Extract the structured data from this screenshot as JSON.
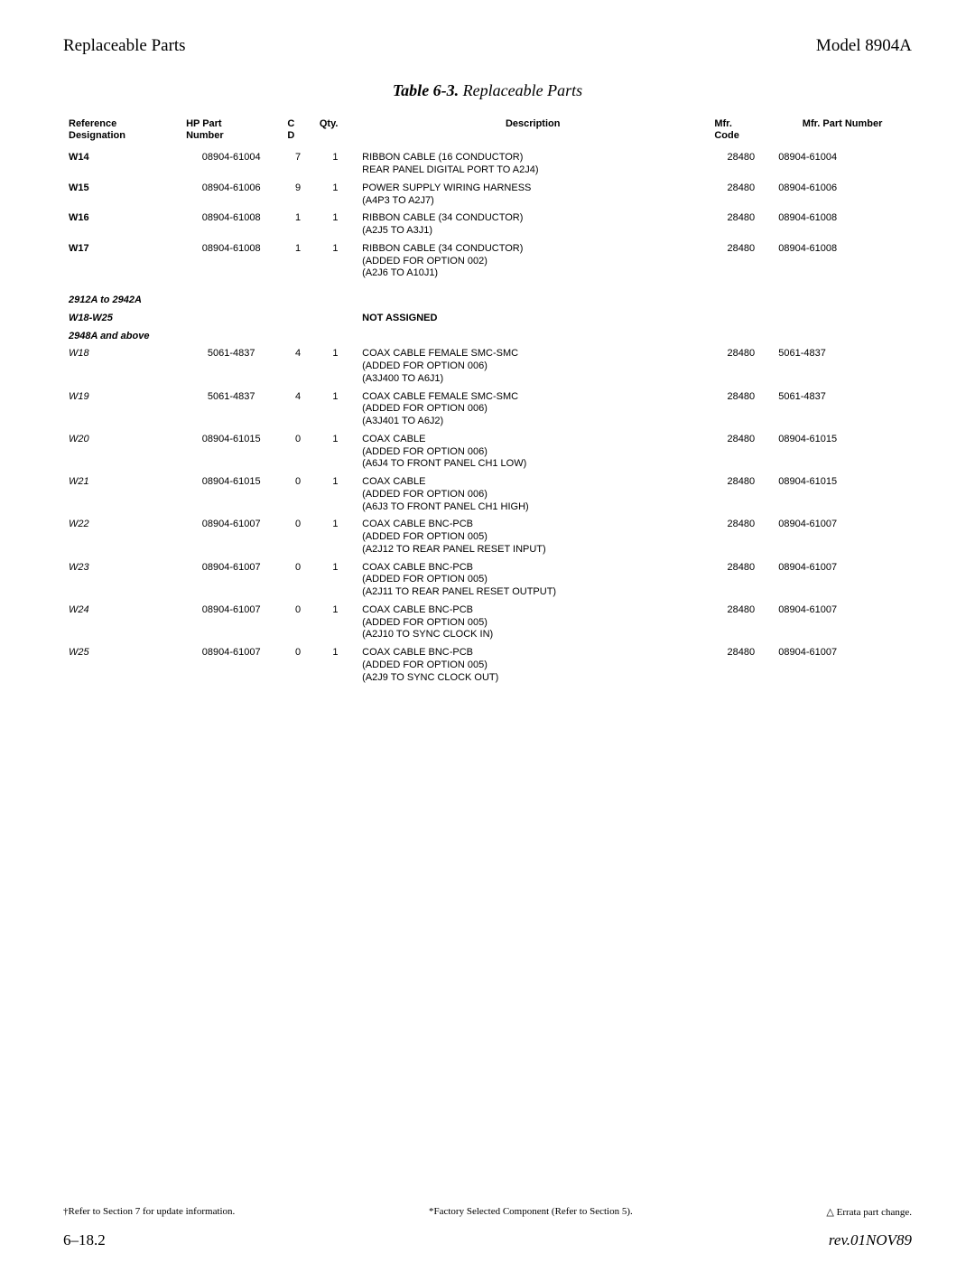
{
  "header": {
    "left": "Replaceable Parts",
    "right": "Model 8904A"
  },
  "table_title": {
    "label": "Table 6-3.",
    "suffix": " Replaceable Parts"
  },
  "columns": {
    "ref": "Reference\nDesignation",
    "hp": "HP Part\nNumber",
    "cd": "C\nD",
    "qty": "Qty.",
    "desc": "Description",
    "mfr": "Mfr.\nCode",
    "mpn": "Mfr. Part Number"
  },
  "rows": [
    {
      "ref": "W14",
      "hp": "08904-61004",
      "cd": "7",
      "qty": "1",
      "desc": "RIBBON CABLE (16 CONDUCTOR)\nREAR PANEL DIGITAL PORT TO A2J4)",
      "mfr": "28480",
      "mpn": "08904-61004",
      "italic": false
    },
    {
      "ref": "W15",
      "hp": "08904-61006",
      "cd": "9",
      "qty": "1",
      "desc": "POWER SUPPLY WIRING HARNESS\n(A4P3 TO A2J7)",
      "mfr": "28480",
      "mpn": "08904-61006",
      "italic": false
    },
    {
      "ref": "W16",
      "hp": "08904-61008",
      "cd": "1",
      "qty": "1",
      "desc": "RIBBON CABLE (34 CONDUCTOR)\n(A2J5 TO A3J1)",
      "mfr": "28480",
      "mpn": "08904-61008",
      "italic": false
    },
    {
      "ref": "W17",
      "hp": "08904-61008",
      "cd": "1",
      "qty": "1",
      "desc": "RIBBON CABLE (34 CONDUCTOR)\n(ADDED FOR OPTION 002)\n(A2J6 TO A10J1)",
      "mfr": "28480",
      "mpn": "08904-61008",
      "italic": false
    }
  ],
  "section_notes": [
    {
      "ref": "2912A to 2942A"
    },
    {
      "ref": "W18-W25",
      "desc": "NOT ASSIGNED"
    },
    {
      "ref": "2948A and above"
    }
  ],
  "rows2": [
    {
      "ref": "W18",
      "hp": "5061-4837",
      "cd": "4",
      "qty": "1",
      "desc": "COAX CABLE FEMALE SMC-SMC\n(ADDED FOR OPTION 006)\n(A3J400 TO A6J1)",
      "mfr": "28480",
      "mpn": "5061-4837",
      "italic": true
    },
    {
      "ref": "W19",
      "hp": "5061-4837",
      "cd": "4",
      "qty": "1",
      "desc": "COAX CABLE FEMALE SMC-SMC\n(ADDED FOR OPTION 006)\n(A3J401 TO A6J2)",
      "mfr": "28480",
      "mpn": "5061-4837",
      "italic": true
    },
    {
      "ref": "W20",
      "hp": "08904-61015",
      "cd": "0",
      "qty": "1",
      "desc": "COAX CABLE\n(ADDED FOR OPTION 006)\n(A6J4 TO FRONT PANEL CH1 LOW)",
      "mfr": "28480",
      "mpn": "08904-61015",
      "italic": true
    },
    {
      "ref": "W21",
      "hp": "08904-61015",
      "cd": "0",
      "qty": "1",
      "desc": "COAX CABLE\n(ADDED FOR OPTION 006)\n(A6J3 TO FRONT PANEL CH1 HIGH)",
      "mfr": "28480",
      "mpn": "08904-61015",
      "italic": true
    },
    {
      "ref": "W22",
      "hp": "08904-61007",
      "cd": "0",
      "qty": "1",
      "desc": "COAX CABLE BNC-PCB\n(ADDED FOR OPTION 005)\n(A2J12 TO REAR PANEL RESET INPUT)",
      "mfr": "28480",
      "mpn": "08904-61007",
      "italic": true
    },
    {
      "ref": "W23",
      "hp": "08904-61007",
      "cd": "0",
      "qty": "1",
      "desc": "COAX CABLE BNC-PCB\n(ADDED FOR OPTION 005)\n(A2J11 TO REAR PANEL RESET OUTPUT)",
      "mfr": "28480",
      "mpn": "08904-61007",
      "italic": true
    },
    {
      "ref": "W24",
      "hp": "08904-61007",
      "cd": "0",
      "qty": "1",
      "desc": "COAX CABLE BNC-PCB\n(ADDED FOR OPTION 005)\n(A2J10 TO SYNC CLOCK IN)",
      "mfr": "28480",
      "mpn": "08904-61007",
      "italic": true
    },
    {
      "ref": "W25",
      "hp": "08904-61007",
      "cd": "0",
      "qty": "1",
      "desc": "COAX CABLE BNC-PCB\n(ADDED FOR OPTION 005)\n(A2J9 TO SYNC CLOCK OUT)",
      "mfr": "28480",
      "mpn": "08904-61007",
      "italic": true
    }
  ],
  "footnotes": {
    "left": "†Refer to Section 7 for update information.",
    "center": "*Factory Selected Component (Refer to Section 5).",
    "right": "△ Errata part change."
  },
  "footer": {
    "page": "6–18.2",
    "rev": "rev.01NOV89"
  }
}
